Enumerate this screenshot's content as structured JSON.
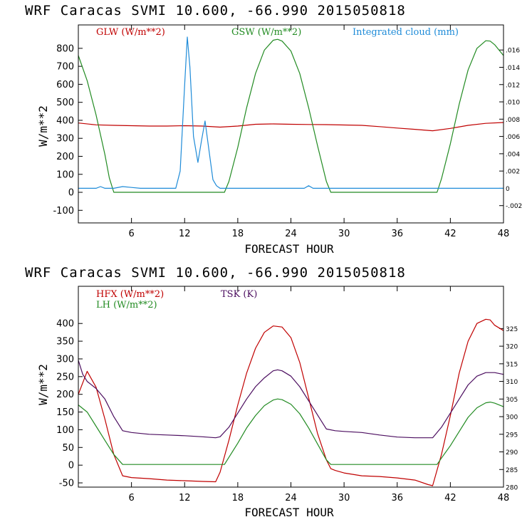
{
  "chart_data": [
    {
      "type": "line",
      "title": "WRF   Caracas SVMI  10.600, -66.990  2015050818",
      "xlabel": "FORECAST HOUR",
      "ylabel": "W/m**2",
      "xlim": [
        0,
        48
      ],
      "ylim": [
        -170,
        930
      ],
      "y2lim": [
        -0.004,
        0.0189
      ],
      "x_ticks": [
        6,
        12,
        18,
        24,
        30,
        36,
        42,
        48
      ],
      "y_ticks": [
        -100,
        0,
        100,
        200,
        300,
        400,
        500,
        600,
        700,
        800
      ],
      "y2_ticks": [
        -0.002,
        0,
        0.002,
        0.004,
        0.006,
        0.008,
        0.01,
        0.012,
        0.014,
        0.016
      ],
      "y2_tick_labels": [
        "-.002",
        "0",
        ".002",
        ".004",
        ".006",
        ".008",
        ".010",
        ".012",
        ".014",
        ".016"
      ],
      "series": [
        {
          "name": "GLW (W/m**2)",
          "color": "#c00000",
          "axis": "left",
          "x": [
            0,
            2,
            4,
            6,
            8,
            10,
            12,
            14,
            16,
            18,
            20,
            22,
            24,
            26,
            28,
            30,
            32,
            34,
            36,
            38,
            40,
            42,
            44,
            46,
            48
          ],
          "y": [
            385,
            375,
            372,
            370,
            368,
            368,
            370,
            368,
            362,
            368,
            378,
            380,
            378,
            377,
            376,
            374,
            372,
            365,
            357,
            350,
            342,
            355,
            372,
            383,
            388
          ]
        },
        {
          "name": "GSW (W/m**2)",
          "color": "#228b22",
          "axis": "left",
          "x": [
            0,
            1,
            2,
            3,
            3.5,
            4,
            5,
            6,
            7,
            8,
            9,
            10,
            11,
            12,
            13,
            14,
            15,
            16,
            16.5,
            17,
            18,
            19,
            20,
            21,
            22,
            22.5,
            23,
            24,
            25,
            26,
            27,
            28,
            28.5,
            29,
            30,
            32,
            34,
            36,
            38,
            40,
            40.5,
            41,
            42,
            43,
            44,
            45,
            46,
            46.5,
            47,
            48
          ],
          "y": [
            760,
            620,
            430,
            210,
            80,
            0,
            0,
            0,
            0,
            0,
            0,
            0,
            0,
            0,
            0,
            0,
            0,
            0,
            0,
            60,
            250,
            470,
            660,
            790,
            845,
            850,
            840,
            785,
            660,
            470,
            260,
            60,
            0,
            0,
            0,
            0,
            0,
            0,
            0,
            0,
            0,
            75,
            270,
            490,
            680,
            800,
            842,
            840,
            820,
            760
          ]
        },
        {
          "name": "Integrated cloud (mm)",
          "color": "#1e8bd8",
          "axis": "right",
          "x": [
            0,
            2,
            2.5,
            3,
            4,
            5,
            6,
            7,
            8,
            9,
            10,
            11,
            11.5,
            12,
            12.3,
            12.6,
            13,
            13.5,
            13.9,
            14.3,
            14.8,
            15.2,
            15.6,
            16,
            17,
            18,
            20,
            22,
            24,
            25.5,
            26,
            26.5,
            27,
            28,
            30,
            34,
            40,
            44,
            48
          ],
          "y": [
            0,
            0,
            0.0002,
            0,
            0,
            0.0002,
            0.0001,
            0,
            0,
            0,
            0,
            0,
            0.002,
            0.012,
            0.0175,
            0.014,
            0.006,
            0.003,
            0.0055,
            0.0078,
            0.004,
            0.001,
            0.0003,
            0,
            0,
            0,
            0,
            0,
            0,
            0,
            0.0003,
            0,
            0,
            0,
            0,
            0,
            0,
            0,
            0
          ]
        }
      ],
      "legend": [
        "GLW (W/m**2)",
        "GSW (W/m**2)",
        "Integrated cloud (mm)"
      ]
    },
    {
      "type": "line",
      "title": "WRF   Caracas SVMI  10.600, -66.990  2015050818",
      "xlabel": "FORECAST HOUR",
      "ylabel": "W/m**2",
      "xlim": [
        0,
        48
      ],
      "ylim": [
        -62,
        505
      ],
      "y2lim": [
        280,
        337
      ],
      "x_ticks": [
        6,
        12,
        18,
        24,
        30,
        36,
        42,
        48
      ],
      "y_ticks": [
        -50,
        0,
        50,
        100,
        150,
        200,
        250,
        300,
        350,
        400
      ],
      "y2_ticks": [
        280,
        285,
        290,
        295,
        300,
        305,
        310,
        315,
        320,
        325
      ],
      "y2_tick_labels": [
        "280",
        "285",
        "290",
        "295",
        "300",
        "305",
        "310",
        "315",
        "320",
        "325"
      ],
      "series": [
        {
          "name": "HFX (W/m**2)",
          "color": "#c00000",
          "axis": "left",
          "x": [
            0,
            1,
            2,
            3,
            4,
            5,
            6,
            8,
            10,
            12,
            14,
            15.5,
            16,
            17,
            18,
            19,
            20,
            21,
            22,
            23,
            24,
            25,
            26,
            27,
            28,
            28.5,
            29,
            30,
            32,
            34,
            36,
            38,
            39.5,
            40,
            41,
            42,
            43,
            44,
            45,
            46,
            46.5,
            47,
            48
          ],
          "y": [
            200,
            265,
            220,
            130,
            30,
            -30,
            -35,
            -38,
            -42,
            -44,
            -46,
            -47,
            -20,
            70,
            170,
            260,
            330,
            375,
            393,
            390,
            360,
            290,
            190,
            90,
            15,
            -10,
            -15,
            -22,
            -30,
            -32,
            -36,
            -42,
            -55,
            -58,
            30,
            140,
            260,
            350,
            400,
            412,
            410,
            395,
            380
          ]
        },
        {
          "name": "LH (W/m**2)",
          "color": "#228b22",
          "axis": "left",
          "x": [
            0,
            1,
            2,
            3,
            4,
            5,
            6,
            8,
            10,
            12,
            14,
            16,
            16.5,
            17,
            18,
            19,
            20,
            21,
            22,
            22.5,
            23,
            24,
            25,
            26,
            27,
            28,
            28.5,
            29,
            30,
            32,
            34,
            36,
            38,
            40,
            40.5,
            41,
            42,
            43,
            44,
            45,
            46,
            46.5,
            47,
            48
          ],
          "y": [
            170,
            150,
            110,
            70,
            30,
            2,
            2,
            2,
            2,
            2,
            2,
            2,
            2,
            22,
            62,
            105,
            140,
            168,
            184,
            187,
            185,
            172,
            145,
            105,
            60,
            15,
            2,
            2,
            2,
            2,
            2,
            2,
            2,
            2,
            2,
            20,
            55,
            95,
            135,
            162,
            176,
            178,
            175,
            165
          ]
        },
        {
          "name": "TSK (K)",
          "color": "#4b0d5f",
          "axis": "right",
          "x": [
            0,
            0.5,
            1,
            2,
            3,
            4,
            5,
            6,
            8,
            10,
            12,
            14,
            15.5,
            16,
            17,
            18,
            19,
            20,
            21,
            22,
            22.5,
            23,
            24,
            25,
            26,
            27,
            28,
            29,
            30,
            32,
            34,
            36,
            38,
            39.5,
            40,
            41,
            42,
            43,
            44,
            45,
            46,
            46.5,
            47,
            48
          ],
          "y": [
            316,
            312,
            310,
            308,
            305,
            300,
            296,
            295.5,
            295,
            294.8,
            294.6,
            294.3,
            294,
            294.3,
            297,
            301,
            305,
            308.5,
            311,
            313,
            313.3,
            313,
            311.5,
            308.5,
            304.5,
            300.5,
            296.5,
            296,
            295.8,
            295.5,
            294.8,
            294.2,
            294,
            294,
            294,
            297,
            301,
            305,
            309,
            311.5,
            312.5,
            312.5,
            312.5,
            312
          ]
        }
      ],
      "legend": [
        "HFX (W/m**2)",
        "LH (W/m**2)",
        "TSK (K)"
      ]
    }
  ]
}
